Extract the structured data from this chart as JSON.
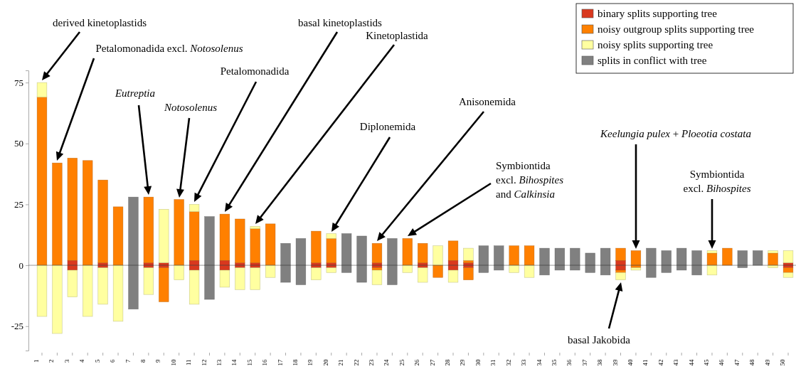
{
  "chart_data": {
    "type": "bar",
    "stacked": true,
    "legend": "top right",
    "grid": false,
    "categories": [
      "1",
      "2",
      "3",
      "4",
      "5",
      "6",
      "7",
      "8",
      "9",
      "10",
      "11",
      "12",
      "13",
      "14",
      "15",
      "16",
      "17",
      "18",
      "19",
      "20",
      "21",
      "22",
      "23",
      "24",
      "25",
      "26",
      "27",
      "28",
      "29",
      "30",
      "31",
      "32",
      "33",
      "34",
      "35",
      "36",
      "37",
      "38",
      "39",
      "40",
      "41",
      "42",
      "43",
      "44",
      "45",
      "46",
      "47",
      "48",
      "49",
      "50"
    ],
    "ylim": [
      -35,
      80
    ],
    "yticks": [
      -25,
      0,
      25,
      50,
      75
    ],
    "ref_lines": [
      {
        "axis": "y",
        "value": 0
      }
    ],
    "series": [
      {
        "name": "binary splits supporting tree",
        "color": "#d9381e",
        "values": [
          null,
          null,
          2,
          null,
          1,
          null,
          null,
          1,
          1,
          null,
          2,
          null,
          2,
          1,
          1,
          null,
          null,
          null,
          1,
          1,
          null,
          null,
          1,
          null,
          null,
          1,
          null,
          2,
          1,
          null,
          null,
          null,
          null,
          null,
          null,
          null,
          null,
          null,
          2,
          null,
          null,
          null,
          null,
          null,
          null,
          null,
          null,
          null,
          null,
          1
        ]
      },
      {
        "name": "noisy outgroup splits supporting tree",
        "color": "#ff8000",
        "values": [
          69,
          42,
          42,
          43,
          34,
          24,
          null,
          27,
          null,
          27,
          20,
          null,
          19,
          18,
          14,
          17,
          null,
          null,
          13,
          10,
          null,
          null,
          8,
          null,
          11,
          8,
          null,
          8,
          1,
          null,
          null,
          8,
          8,
          null,
          null,
          null,
          null,
          null,
          5,
          6,
          null,
          null,
          null,
          null,
          5,
          7,
          null,
          null,
          5,
          null
        ]
      },
      {
        "name": "noisy splits supporting tree",
        "color": "#ffffa0",
        "values": [
          6,
          null,
          null,
          null,
          null,
          null,
          null,
          null,
          22,
          null,
          3,
          null,
          null,
          null,
          1,
          null,
          null,
          null,
          null,
          2,
          null,
          null,
          null,
          null,
          null,
          null,
          8,
          null,
          5,
          null,
          null,
          null,
          null,
          null,
          null,
          null,
          null,
          null,
          null,
          null,
          null,
          null,
          null,
          null,
          1,
          null,
          null,
          null,
          1,
          5
        ]
      },
      {
        "name": "splits in conflict with tree",
        "color": "#808080",
        "values": [
          null,
          null,
          null,
          null,
          null,
          null,
          28,
          null,
          null,
          null,
          null,
          20,
          null,
          null,
          null,
          null,
          9,
          11,
          null,
          null,
          13,
          12,
          null,
          11,
          null,
          null,
          null,
          null,
          null,
          8,
          8,
          null,
          null,
          7,
          7,
          7,
          5,
          7,
          null,
          null,
          7,
          6,
          7,
          6,
          null,
          null,
          6,
          6,
          null,
          null
        ]
      },
      {
        "color": "#d9381e",
        "values": [
          null,
          null,
          -2,
          null,
          -1,
          null,
          null,
          -1,
          -1,
          null,
          -2,
          null,
          -2,
          -1,
          -1,
          null,
          null,
          null,
          -1,
          -1,
          null,
          null,
          -1,
          null,
          null,
          -1,
          null,
          -2,
          -1,
          null,
          null,
          null,
          null,
          null,
          null,
          null,
          null,
          null,
          -2,
          null,
          null,
          null,
          null,
          null,
          null,
          null,
          null,
          null,
          null,
          -1
        ]
      },
      {
        "color": "#ff8000",
        "values": [
          null,
          null,
          null,
          null,
          null,
          null,
          null,
          null,
          -14,
          null,
          null,
          null,
          null,
          null,
          null,
          null,
          null,
          null,
          null,
          null,
          null,
          null,
          -1,
          null,
          null,
          null,
          -5,
          null,
          -5,
          null,
          null,
          null,
          null,
          null,
          null,
          null,
          null,
          null,
          -1,
          -1,
          null,
          null,
          null,
          null,
          null,
          null,
          null,
          null,
          null,
          -2
        ]
      },
      {
        "color": "#ffffa0",
        "values": [
          -21,
          -28,
          -11,
          -21,
          -15,
          -23,
          null,
          -11,
          null,
          -6,
          -14,
          null,
          -7,
          -9,
          -9,
          -5,
          null,
          null,
          -5,
          -2,
          null,
          null,
          -6,
          null,
          -3,
          -6,
          null,
          -5,
          null,
          null,
          null,
          -3,
          -5,
          null,
          null,
          null,
          null,
          null,
          -3,
          -1,
          null,
          null,
          null,
          null,
          -4,
          null,
          null,
          null,
          -1,
          -2
        ]
      },
      {
        "color": "#808080",
        "values": [
          null,
          null,
          null,
          null,
          null,
          null,
          -18,
          null,
          null,
          null,
          null,
          -14,
          null,
          null,
          null,
          null,
          -7,
          -8,
          null,
          null,
          -3,
          -7,
          null,
          -8,
          null,
          null,
          null,
          null,
          null,
          -3,
          -2,
          null,
          null,
          -4,
          -2,
          -2,
          -3,
          -4,
          null,
          null,
          -5,
          -3,
          -2,
          -4,
          null,
          null,
          -1,
          null,
          null,
          null
        ]
      }
    ],
    "annotations": [
      "derived kinetoplastids",
      "Petalomonadida excl. Notosolenus",
      "Eutreptia",
      "Notosolenus",
      "Petalomonadida",
      "basal kinetoplastids",
      "Kinetoplastida",
      "Diplonemida",
      "Anisonemida",
      "Symbiontida excl. Bihospites and Calkinsia",
      "Keelungia pulex + Ploeotia costata",
      "Symbiontida excl. Bihospites",
      "basal Jakobida"
    ]
  }
}
